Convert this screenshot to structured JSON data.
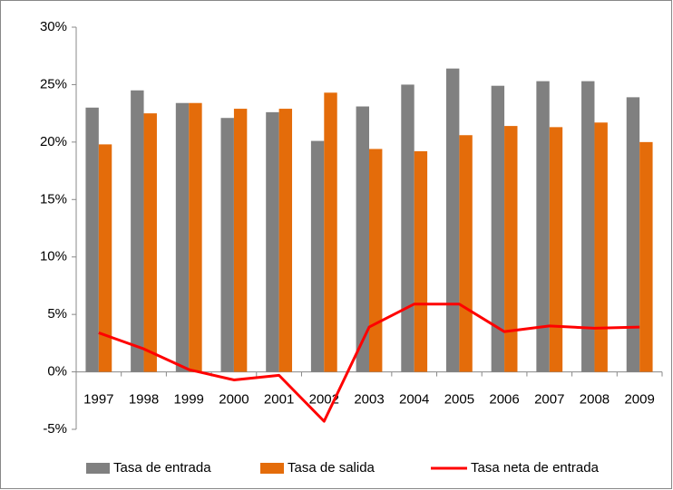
{
  "chart_data": {
    "type": "bar_line",
    "categories": [
      "1997",
      "1998",
      "1999",
      "2000",
      "2001",
      "2002",
      "2003",
      "2004",
      "2005",
      "2006",
      "2007",
      "2008",
      "2009"
    ],
    "series": [
      {
        "name": "Tasa de entrada",
        "type": "bar",
        "color": "#808080",
        "values": [
          23.0,
          24.5,
          23.4,
          22.1,
          22.6,
          20.1,
          23.1,
          25.0,
          26.4,
          24.9,
          25.3,
          25.3,
          23.9
        ]
      },
      {
        "name": "Tasa de salida",
        "type": "bar",
        "color": "#e46c0a",
        "values": [
          19.8,
          22.5,
          23.4,
          22.9,
          22.9,
          24.3,
          19.4,
          19.2,
          20.6,
          21.4,
          21.3,
          21.7,
          20.0
        ]
      },
      {
        "name": "Tasa neta de entrada",
        "type": "line",
        "color": "#ff0000",
        "values": [
          3.4,
          2.0,
          0.2,
          -0.7,
          -0.3,
          -4.3,
          3.9,
          5.9,
          5.9,
          3.5,
          4.0,
          3.8,
          3.9
        ]
      }
    ],
    "ylim": [
      -5,
      30
    ],
    "yticks": [
      {
        "value": -5,
        "label": "-5%"
      },
      {
        "value": 0,
        "label": "0%"
      },
      {
        "value": 5,
        "label": "5%"
      },
      {
        "value": 10,
        "label": "10%"
      },
      {
        "value": 15,
        "label": "15%"
      },
      {
        "value": 20,
        "label": "20%"
      },
      {
        "value": 25,
        "label": "25%"
      },
      {
        "value": 30,
        "label": "30%"
      }
    ],
    "grid": false,
    "legend": "bottom"
  }
}
